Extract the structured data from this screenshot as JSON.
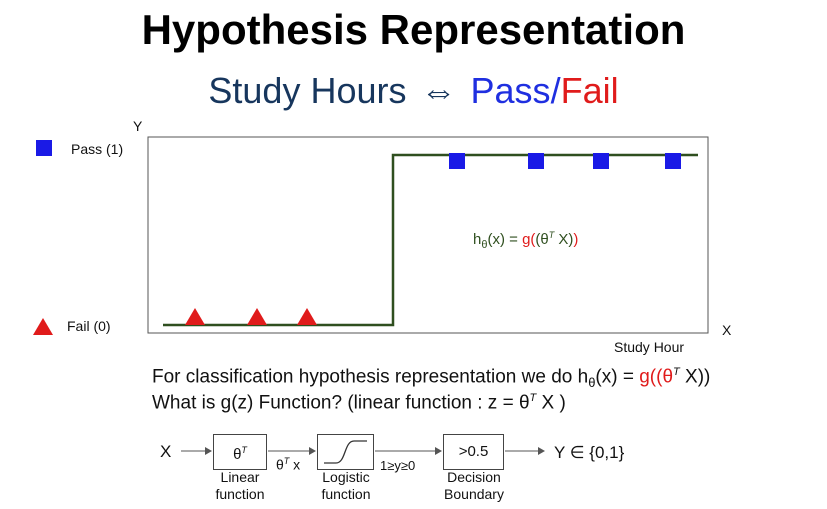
{
  "title": "Hypothesis Representation",
  "subtitle": {
    "part1": "Study Hours",
    "arrow": "⇔",
    "part2": "Pass",
    "slash": "/",
    "part3": "Fail"
  },
  "colors": {
    "step_line": "#2f4f1f",
    "pass_marker": "#1a1ae6",
    "fail_marker": "#e01b1b",
    "highlight": "#e01b1b",
    "hyp_text": "#2f4f1f"
  },
  "plot": {
    "y_axis_label": "Y",
    "x_axis_label": "X",
    "x_title": "Study Hour",
    "legend": {
      "pass": "Pass (1)",
      "fail": "Fail (0)"
    },
    "hypothesis": {
      "h": "h",
      "sub": "θ",
      "mid": "(x) = ",
      "g": "g(",
      "inner": "(θ",
      "sup": "T",
      "tail": " X)",
      "close": ")"
    }
  },
  "question": {
    "line1_prefix": "For classification hypothesis representation we do h",
    "line1_sub": "θ",
    "line1_mid": "(x) = ",
    "line1_g": "g((θ",
    "line1_sup": "T",
    "line1_end": " X))",
    "line2_prefix": "What is g(z) Function? (linear function : z = θ",
    "line2_sup": "T",
    "line2_end": " X )"
  },
  "flow": {
    "input": "X",
    "box1_base": "θ",
    "box1_sup": "T",
    "box1_caption": [
      "Linear",
      "function"
    ],
    "between12_base": "θ",
    "between12_sup": "T",
    "between12_end": " x",
    "box2_caption": [
      "Logistic",
      "function"
    ],
    "between23": "1≥y≥0",
    "box3": ">0.5",
    "box3_caption": [
      "Decision",
      "Boundary"
    ],
    "output": "Y ∈ {0,1}"
  }
}
